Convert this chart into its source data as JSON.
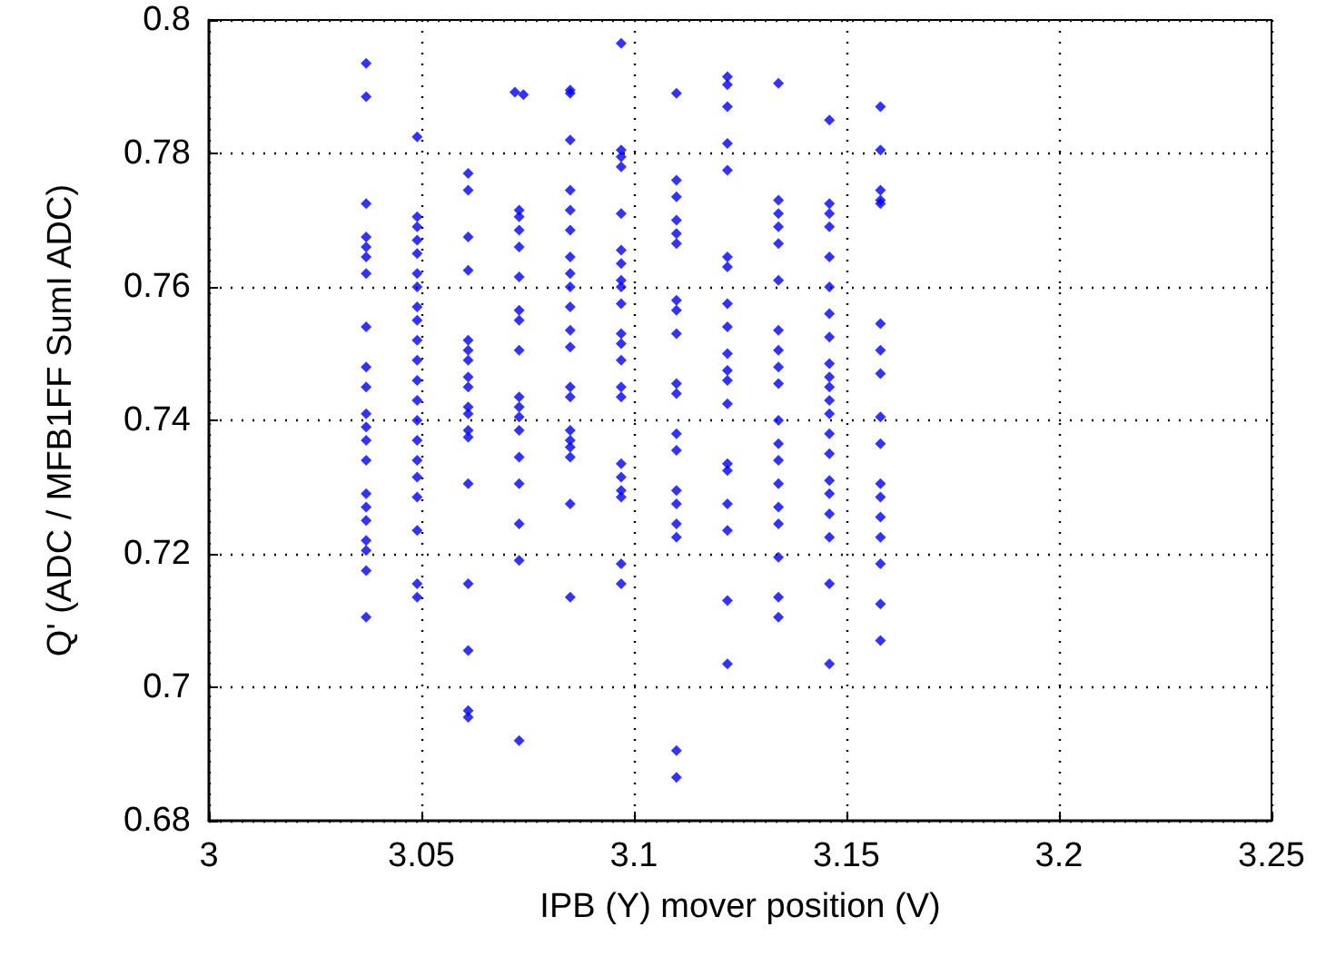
{
  "chart_data": {
    "type": "scatter",
    "xlabel": "IPB (Y) mover position (V)",
    "ylabel": "Q' (ADC / MFB1FF SumI ADC)",
    "xlim": [
      3,
      3.25
    ],
    "xticks": [
      3,
      3.05,
      3.1,
      3.15,
      3.2,
      3.25
    ],
    "ylim": [
      0.68,
      0.8
    ],
    "yticks": [
      0.68,
      0.7,
      0.72,
      0.74,
      0.76,
      0.78,
      0.8
    ],
    "grid": true,
    "marker": "diamond",
    "series": [
      {
        "color": "#0000ff",
        "x": [
          3.037,
          3.037,
          3.037,
          3.037,
          3.037,
          3.037,
          3.037,
          3.037,
          3.037,
          3.037,
          3.037,
          3.037,
          3.037,
          3.037,
          3.037,
          3.037,
          3.037,
          3.037,
          3.037,
          3.037,
          3.037
        ],
        "values": [
          0.7935,
          0.7885,
          0.7725,
          0.7675,
          0.766,
          0.7645,
          0.762,
          0.754,
          0.748,
          0.745,
          0.741,
          0.739,
          0.737,
          0.734,
          0.729,
          0.727,
          0.725,
          0.722,
          0.7205,
          0.7175,
          0.7105
        ]
      },
      {
        "color": "#0000ff",
        "x": [
          3.049,
          3.049,
          3.049,
          3.049,
          3.049,
          3.049,
          3.049,
          3.049,
          3.049,
          3.049,
          3.049,
          3.049,
          3.049,
          3.049,
          3.049,
          3.049,
          3.049,
          3.049,
          3.049,
          3.049,
          3.049
        ],
        "values": [
          0.7825,
          0.7705,
          0.769,
          0.767,
          0.765,
          0.762,
          0.76,
          0.757,
          0.755,
          0.752,
          0.749,
          0.746,
          0.743,
          0.74,
          0.737,
          0.734,
          0.7315,
          0.7285,
          0.7235,
          0.7155,
          0.7135
        ]
      },
      {
        "color": "#0000ff",
        "x": [
          3.061,
          3.061,
          3.061,
          3.061,
          3.061,
          3.061,
          3.061,
          3.061,
          3.061,
          3.061,
          3.061,
          3.061,
          3.061,
          3.061,
          3.061,
          3.061,
          3.061,
          3.061
        ],
        "values": [
          0.777,
          0.7745,
          0.7675,
          0.7625,
          0.752,
          0.7505,
          0.749,
          0.7465,
          0.745,
          0.742,
          0.741,
          0.7385,
          0.7375,
          0.7305,
          0.7155,
          0.7055,
          0.6965,
          0.6955
        ]
      },
      {
        "color": "#0000ff",
        "x": [
          3.072,
          3.074,
          3.073,
          3.073,
          3.073,
          3.073,
          3.073,
          3.073,
          3.073,
          3.073,
          3.073,
          3.073,
          3.073,
          3.073,
          3.073,
          3.073,
          3.073,
          3.073,
          3.073
        ],
        "values": [
          0.7892,
          0.7888,
          0.7715,
          0.7705,
          0.7685,
          0.766,
          0.7615,
          0.7565,
          0.755,
          0.7505,
          0.7435,
          0.742,
          0.7405,
          0.7385,
          0.7345,
          0.7305,
          0.7245,
          0.719,
          0.692
        ]
      },
      {
        "color": "#0000ff",
        "x": [
          3.085,
          3.085,
          3.085,
          3.085,
          3.085,
          3.085,
          3.085,
          3.085,
          3.085,
          3.085,
          3.085,
          3.085,
          3.085,
          3.085,
          3.085,
          3.085,
          3.085,
          3.085,
          3.085,
          3.085
        ],
        "values": [
          0.7895,
          0.789,
          0.782,
          0.7745,
          0.7715,
          0.7685,
          0.7645,
          0.762,
          0.76,
          0.757,
          0.7535,
          0.751,
          0.745,
          0.7435,
          0.7385,
          0.737,
          0.736,
          0.7345,
          0.7275,
          0.7135
        ]
      },
      {
        "color": "#0000ff",
        "x": [
          3.097,
          3.097,
          3.097,
          3.097,
          3.097,
          3.097,
          3.097,
          3.097,
          3.097,
          3.097,
          3.097,
          3.097,
          3.097,
          3.097,
          3.097,
          3.097,
          3.097,
          3.097,
          3.097,
          3.097,
          3.097
        ],
        "values": [
          0.7965,
          0.7805,
          0.7795,
          0.778,
          0.771,
          0.7655,
          0.7635,
          0.761,
          0.76,
          0.7575,
          0.753,
          0.7515,
          0.749,
          0.745,
          0.7435,
          0.7335,
          0.7315,
          0.7295,
          0.7285,
          0.7185,
          0.7155
        ]
      },
      {
        "color": "#0000ff",
        "x": [
          3.11,
          3.11,
          3.11,
          3.11,
          3.11,
          3.11,
          3.11,
          3.11,
          3.11,
          3.11,
          3.11,
          3.11,
          3.11,
          3.11,
          3.11,
          3.11,
          3.11,
          3.11,
          3.11
        ],
        "values": [
          0.789,
          0.776,
          0.7735,
          0.77,
          0.768,
          0.7665,
          0.758,
          0.7565,
          0.753,
          0.7455,
          0.744,
          0.738,
          0.7355,
          0.7295,
          0.7275,
          0.7245,
          0.7225,
          0.6905,
          0.6865
        ]
      },
      {
        "color": "#0000ff",
        "x": [
          3.122,
          3.122,
          3.122,
          3.122,
          3.122,
          3.122,
          3.122,
          3.122,
          3.122,
          3.122,
          3.122,
          3.122,
          3.122,
          3.122,
          3.122,
          3.122,
          3.122,
          3.122,
          3.122
        ],
        "values": [
          0.7915,
          0.7903,
          0.787,
          0.7815,
          0.7775,
          0.7645,
          0.763,
          0.7575,
          0.754,
          0.75,
          0.7475,
          0.746,
          0.7425,
          0.7335,
          0.7325,
          0.7275,
          0.7235,
          0.713,
          0.7035
        ]
      },
      {
        "color": "#0000ff",
        "x": [
          3.134,
          3.134,
          3.134,
          3.134,
          3.134,
          3.134,
          3.134,
          3.134,
          3.134,
          3.134,
          3.134,
          3.134,
          3.134,
          3.134,
          3.134,
          3.134,
          3.134,
          3.134,
          3.134
        ],
        "values": [
          0.7905,
          0.773,
          0.771,
          0.769,
          0.7665,
          0.761,
          0.7535,
          0.7505,
          0.748,
          0.7455,
          0.74,
          0.7365,
          0.734,
          0.7305,
          0.727,
          0.7245,
          0.7195,
          0.7135,
          0.7105
        ]
      },
      {
        "color": "#0000ff",
        "x": [
          3.146,
          3.146,
          3.146,
          3.146,
          3.146,
          3.146,
          3.146,
          3.146,
          3.146,
          3.146,
          3.146,
          3.146,
          3.146,
          3.146,
          3.146,
          3.146,
          3.146,
          3.146,
          3.146,
          3.146,
          3.146
        ],
        "values": [
          0.785,
          0.7725,
          0.771,
          0.769,
          0.7645,
          0.76,
          0.756,
          0.7525,
          0.7485,
          0.7465,
          0.745,
          0.743,
          0.741,
          0.738,
          0.735,
          0.731,
          0.729,
          0.726,
          0.7225,
          0.7155,
          0.7035
        ]
      },
      {
        "color": "#0000ff",
        "x": [
          3.158,
          3.158,
          3.158,
          3.158,
          3.158,
          3.158,
          3.158,
          3.158,
          3.158,
          3.158,
          3.158,
          3.158,
          3.158,
          3.158,
          3.158,
          3.158,
          3.158
        ],
        "values": [
          0.787,
          0.7805,
          0.7745,
          0.773,
          0.7725,
          0.7545,
          0.7505,
          0.747,
          0.7405,
          0.7365,
          0.7305,
          0.7285,
          0.7255,
          0.7225,
          0.7185,
          0.7125,
          0.707
        ]
      }
    ]
  }
}
